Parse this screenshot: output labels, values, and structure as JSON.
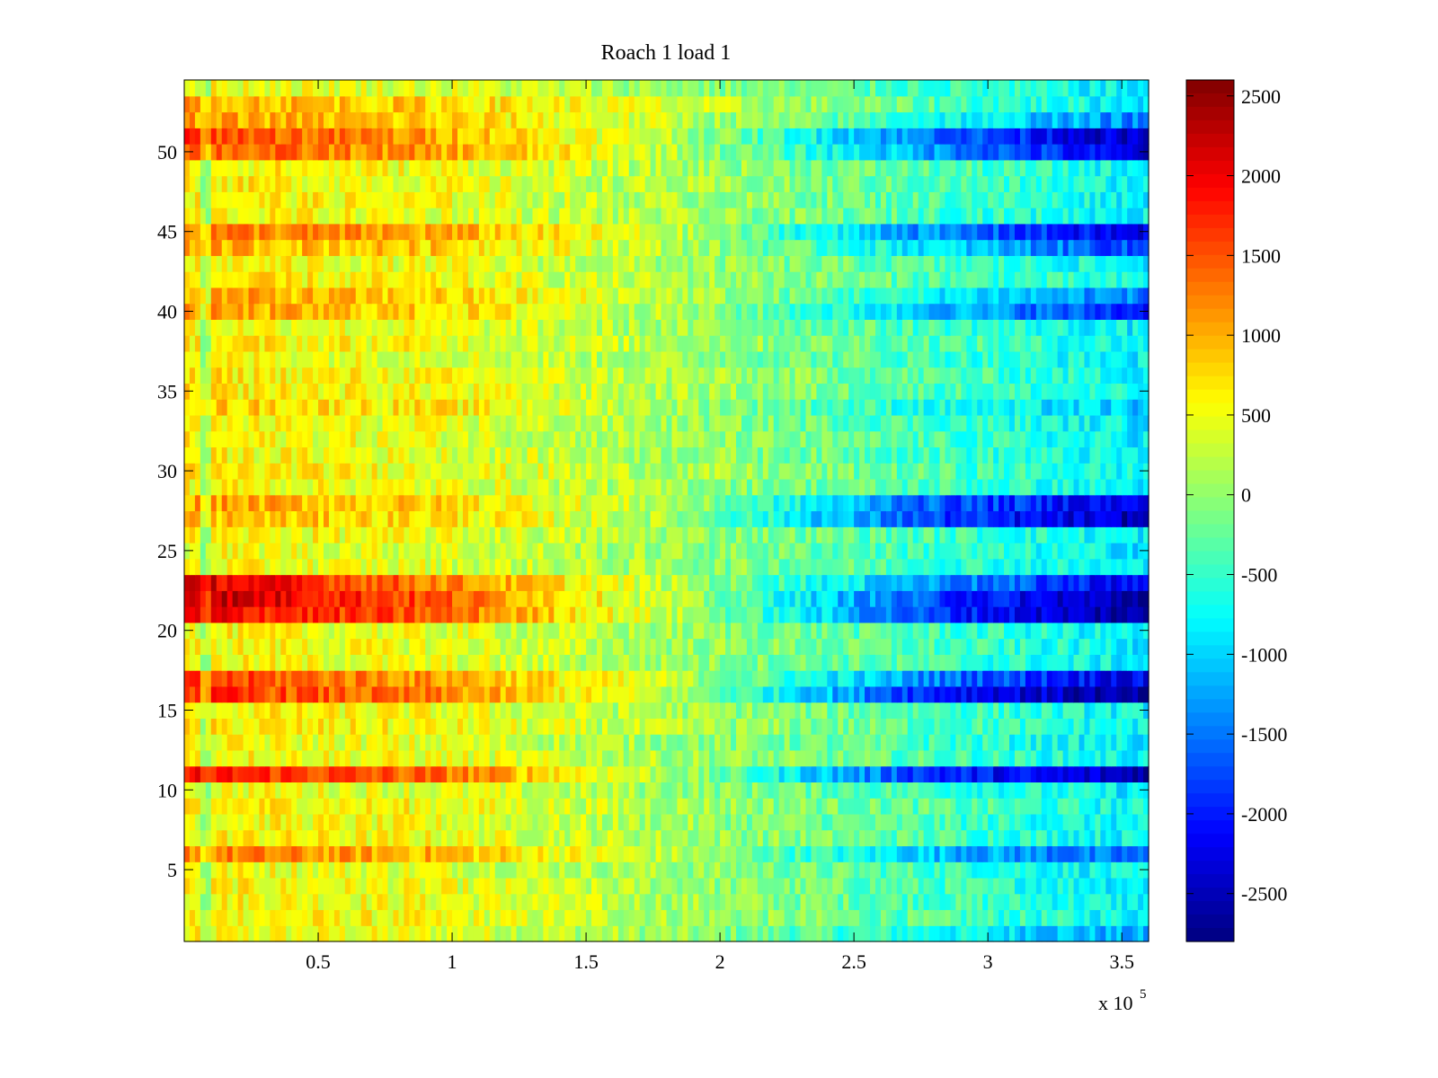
{
  "chart_data": {
    "type": "heatmap",
    "title": "Roach 1 load 1",
    "xlabel": "",
    "ylabel": "",
    "x_multiplier_label": "x 10",
    "x_multiplier_exponent": "5",
    "xlim": [
      0,
      3.6
    ],
    "ylim": [
      0.5,
      54.5
    ],
    "rows": 54,
    "x_ticks": [
      0.5,
      1,
      1.5,
      2,
      2.5,
      3,
      3.5
    ],
    "x_tick_labels": [
      "0.5",
      "1",
      "1.5",
      "2",
      "2.5",
      "3",
      "3.5"
    ],
    "y_ticks": [
      5,
      10,
      15,
      20,
      25,
      30,
      35,
      40,
      45,
      50
    ],
    "y_tick_labels": [
      "5",
      "10",
      "15",
      "20",
      "25",
      "30",
      "35",
      "40",
      "45",
      "50"
    ],
    "colorbar": {
      "colormap": "jet",
      "clim": [
        -2800,
        2600
      ],
      "ticks": [
        2500,
        2000,
        1500,
        1000,
        500,
        0,
        -500,
        -1000,
        -1500,
        -2000,
        -2500
      ],
      "tick_labels": [
        "2500",
        "2000",
        "1500",
        "1000",
        "500",
        "0",
        "-500",
        "-1000",
        "-1500",
        "-2000",
        "-2500"
      ]
    },
    "row_profiles": {
      "description": "approximate value at x = 0.1, 1.0, 1.8, 2.8, 3.55 (x10^5) per channel row",
      "x_knots": [
        0.1,
        1.0,
        1.8,
        2.8,
        3.55
      ],
      "hot_rows": {
        "50": [
          1500,
          1100,
          300,
          -1200,
          -2300
        ],
        "51": [
          1600,
          1000,
          250,
          -1500,
          -2500
        ],
        "52": [
          1100,
          800,
          300,
          -600,
          -1400
        ],
        "53": [
          1000,
          700,
          300,
          -400,
          -900
        ],
        "45": [
          1300,
          1000,
          250,
          -1400,
          -2300
        ],
        "44": [
          1000,
          800,
          200,
          -900,
          -1800
        ],
        "40": [
          1100,
          800,
          200,
          -1000,
          -1900
        ],
        "41": [
          1000,
          700,
          200,
          -800,
          -1500
        ],
        "34": [
          900,
          700,
          200,
          -600,
          -1000
        ],
        "28": [
          1000,
          700,
          100,
          -1700,
          -2300
        ],
        "27": [
          900,
          700,
          100,
          -1800,
          -2500
        ],
        "22": [
          2300,
          1400,
          200,
          -1800,
          -2600
        ],
        "23": [
          2100,
          1200,
          200,
          -1300,
          -2200
        ],
        "21": [
          1900,
          1300,
          200,
          -1900,
          -2700
        ],
        "16": [
          1700,
          1200,
          200,
          -1900,
          -2700
        ],
        "17": [
          1500,
          1000,
          200,
          -1500,
          -2300
        ],
        "11": [
          1800,
          1300,
          150,
          -1900,
          -2500
        ],
        "6": [
          1200,
          900,
          150,
          -1100,
          -1700
        ],
        "1": [
          500,
          400,
          0,
          -700,
          -1300
        ]
      },
      "default_row": [
        600,
        450,
        100,
        -400,
        -800
      ]
    }
  }
}
